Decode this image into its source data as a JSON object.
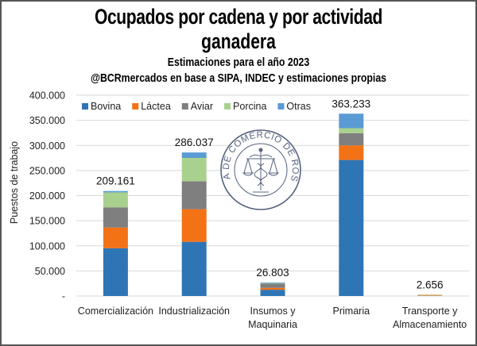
{
  "chart_data": {
    "type": "bar",
    "stacked": true,
    "title": "Ocupados por cadena y por actividad ganadera",
    "title_lines": [
      "Ocupados por cadena y por actividad",
      "ganadera"
    ],
    "subtitle": "Estimaciones para el año 2023",
    "source": "@BCRmercados en base a SIPA, INDEC y estimaciones propias",
    "xlabel": "",
    "ylabel": "Puestos de trabajo",
    "ylim": [
      0,
      400000
    ],
    "yticks": [
      0,
      50000,
      100000,
      150000,
      200000,
      250000,
      300000,
      350000,
      400000
    ],
    "ytick_labels": [
      "-",
      "50.000",
      "100.000",
      "150.000",
      "200.000",
      "250.000",
      "300.000",
      "350.000",
      "400.000"
    ],
    "grid": true,
    "legend_position": "top-left",
    "categories": [
      "Comercialización",
      "Industrialización",
      "Insumos y Maquinaria",
      "Primaria",
      "Transporte y Almacenamiento"
    ],
    "category_label_lines": [
      [
        "Comercialización"
      ],
      [
        "Industrialización"
      ],
      [
        "Insumos y",
        "Maquinaria"
      ],
      [
        "Primaria"
      ],
      [
        "Transporte y",
        "Almacenamiento"
      ]
    ],
    "series": [
      {
        "name": "Bovina",
        "color": "#2E75B6",
        "legend": true,
        "values": [
          95200,
          108000,
          12500,
          271000,
          0
        ]
      },
      {
        "name": "Láctea",
        "color": "#F47216",
        "legend": true,
        "values": [
          41300,
          65000,
          3700,
          29000,
          0
        ]
      },
      {
        "name": "Aviar",
        "color": "#7F7F7F",
        "legend": true,
        "values": [
          40200,
          55600,
          8500,
          24400,
          0
        ]
      },
      {
        "name": "Porcina",
        "color": "#A9D18E",
        "legend": true,
        "values": [
          29700,
          46500,
          1500,
          10000,
          0
        ]
      },
      {
        "name": "Otras",
        "color": "#5B9BD5",
        "legend": true,
        "values": [
          2761,
          10937,
          603,
          28833,
          0
        ]
      },
      {
        "name": "Transporte",
        "color": "#C9A56A",
        "legend": false,
        "values": [
          0,
          0,
          0,
          0,
          2656
        ]
      }
    ],
    "totals": [
      209161,
      286037,
      26803,
      363233,
      2656
    ],
    "total_labels": [
      "209.161",
      "286.037",
      "26.803",
      "363.233",
      "2.656"
    ]
  },
  "watermark": {
    "text": "BOLSA DE COMERCIO DE ROSARIO"
  }
}
